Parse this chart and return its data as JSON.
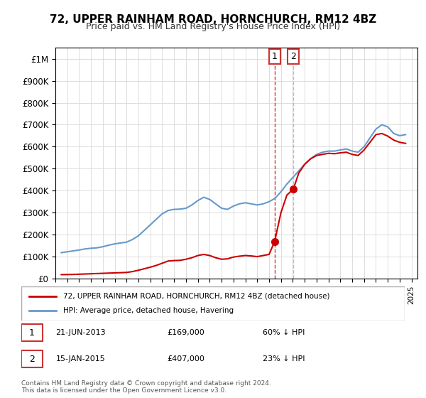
{
  "title": "72, UPPER RAINHAM ROAD, HORNCHURCH, RM12 4BZ",
  "subtitle": "Price paid vs. HM Land Registry's House Price Index (HPI)",
  "ylabel": "",
  "xlabel": "",
  "ylim": [
    0,
    1050000
  ],
  "yticks": [
    0,
    100000,
    200000,
    300000,
    400000,
    500000,
    600000,
    700000,
    800000,
    900000,
    1000000
  ],
  "ytick_labels": [
    "£0",
    "£100K",
    "£200K",
    "£300K",
    "£400K",
    "£500K",
    "£600K",
    "£700K",
    "£800K",
    "£900K",
    "£1M"
  ],
  "hpi_color": "#6699cc",
  "price_color": "#cc0000",
  "transaction1": {
    "date": "21-JUN-2013",
    "price": 169000,
    "hpi_pct": "60% ↓ HPI",
    "year": 2013.47
  },
  "transaction2": {
    "date": "15-JAN-2015",
    "price": 407000,
    "hpi_pct": "23% ↓ HPI",
    "year": 2015.04
  },
  "legend_address": "72, UPPER RAINHAM ROAD, HORNCHURCH, RM12 4BZ (detached house)",
  "legend_hpi": "HPI: Average price, detached house, Havering",
  "footnote": "Contains HM Land Registry data © Crown copyright and database right 2024.\nThis data is licensed under the Open Government Licence v3.0.",
  "hpi_data": {
    "years": [
      1995.5,
      1996.0,
      1996.5,
      1997.0,
      1997.5,
      1998.0,
      1998.5,
      1999.0,
      1999.5,
      2000.0,
      2000.5,
      2001.0,
      2001.5,
      2002.0,
      2002.5,
      2003.0,
      2003.5,
      2004.0,
      2004.5,
      2005.0,
      2005.5,
      2006.0,
      2006.5,
      2007.0,
      2007.5,
      2008.0,
      2008.5,
      2009.0,
      2009.5,
      2010.0,
      2010.5,
      2011.0,
      2011.5,
      2012.0,
      2012.5,
      2013.0,
      2013.5,
      2014.0,
      2014.5,
      2015.0,
      2015.5,
      2016.0,
      2016.5,
      2017.0,
      2017.5,
      2018.0,
      2018.5,
      2019.0,
      2019.5,
      2020.0,
      2020.5,
      2021.0,
      2021.5,
      2022.0,
      2022.5,
      2023.0,
      2023.5,
      2024.0,
      2024.5
    ],
    "values": [
      118000,
      122000,
      126000,
      130000,
      135000,
      138000,
      140000,
      145000,
      152000,
      158000,
      162000,
      166000,
      178000,
      195000,
      220000,
      245000,
      270000,
      295000,
      310000,
      315000,
      316000,
      320000,
      335000,
      355000,
      370000,
      360000,
      340000,
      320000,
      315000,
      330000,
      340000,
      345000,
      340000,
      335000,
      340000,
      350000,
      365000,
      395000,
      430000,
      460000,
      490000,
      520000,
      545000,
      565000,
      575000,
      580000,
      580000,
      585000,
      590000,
      580000,
      575000,
      600000,
      640000,
      680000,
      700000,
      690000,
      660000,
      650000,
      655000
    ]
  },
  "price_data": {
    "years": [
      1995.5,
      1996.0,
      1996.5,
      1997.0,
      1997.5,
      1998.0,
      1998.5,
      1999.0,
      1999.5,
      2000.0,
      2000.5,
      2001.0,
      2001.5,
      2002.0,
      2002.5,
      2003.0,
      2003.5,
      2004.0,
      2004.5,
      2005.0,
      2005.5,
      2006.0,
      2006.5,
      2007.0,
      2007.5,
      2008.0,
      2008.5,
      2009.0,
      2009.5,
      2010.0,
      2010.5,
      2011.0,
      2011.5,
      2012.0,
      2012.5,
      2013.0,
      2013.47,
      2014.0,
      2014.5,
      2015.04,
      2015.5,
      2016.0,
      2016.5,
      2017.0,
      2017.5,
      2018.0,
      2018.5,
      2019.0,
      2019.5,
      2020.0,
      2020.5,
      2021.0,
      2021.5,
      2022.0,
      2022.5,
      2023.0,
      2023.5,
      2024.0,
      2024.5
    ],
    "values": [
      18000,
      18500,
      19000,
      20000,
      21000,
      22000,
      23000,
      24000,
      25000,
      26000,
      27000,
      28000,
      32000,
      38000,
      45000,
      52000,
      60000,
      70000,
      80000,
      82000,
      83000,
      88000,
      95000,
      105000,
      110000,
      105000,
      95000,
      88000,
      90000,
      98000,
      102000,
      105000,
      103000,
      100000,
      105000,
      110000,
      169000,
      300000,
      380000,
      407000,
      480000,
      520000,
      545000,
      560000,
      565000,
      570000,
      568000,
      572000,
      575000,
      565000,
      560000,
      585000,
      620000,
      655000,
      660000,
      648000,
      630000,
      620000,
      615000
    ]
  }
}
